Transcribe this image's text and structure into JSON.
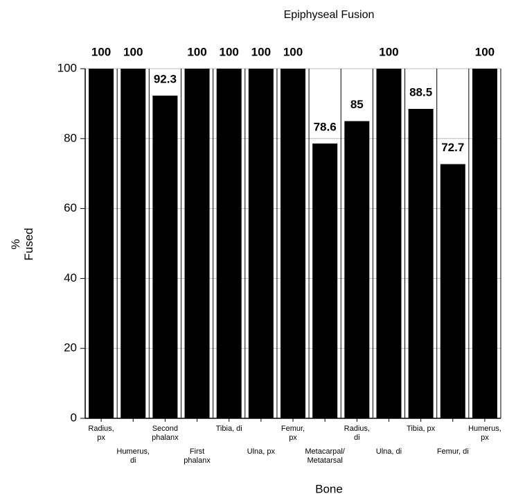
{
  "chart_data": {
    "type": "bar",
    "title": "Epiphyseal Fusion",
    "x_label": "Bone",
    "y_label": "%\nFused",
    "categories": [
      "Radius,\npx",
      "Humerus,\ndi",
      "Second\nphalanx",
      "First\nphalanx",
      "Tibia, di",
      "Ulna, px",
      "Femur,\npx",
      "Metacarpal/\nMetatarsal",
      "Radius,\ndi",
      "Ulna, di",
      "Tibia, px",
      "Femur, di",
      "Humerus,\npx"
    ],
    "values": [
      100,
      100,
      92.3,
      100,
      100,
      100,
      100,
      78.6,
      85,
      100,
      88.5,
      72.7,
      100
    ],
    "color": "#000000",
    "ylim": [
      0,
      100
    ],
    "yticks": [
      0,
      20,
      40,
      60,
      80,
      100
    ],
    "grid": true
  }
}
